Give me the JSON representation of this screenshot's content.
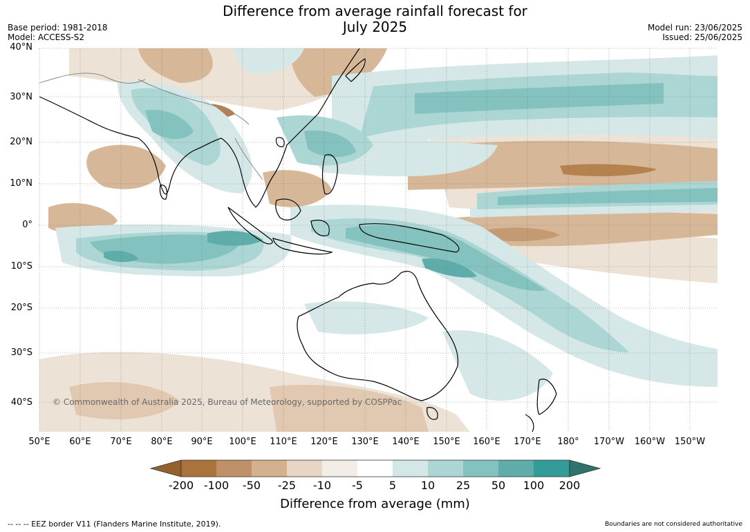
{
  "title_line1": "Difference from average rainfall forecast for",
  "title_line2": "July 2025",
  "base_period": "Base period: 1981-2018",
  "model": "Model: ACCESS-S2",
  "model_run": "Model run: 23/06/2025",
  "issued": "Issued: 25/06/2025",
  "lat_labels": [
    "40°N",
    "30°N",
    "20°N",
    "10°N",
    "0°",
    "10°S",
    "20°S",
    "30°S",
    "40°S"
  ],
  "lon_labels": [
    "50°E",
    "60°E",
    "70°E",
    "80°E",
    "90°E",
    "100°E",
    "110°E",
    "120°E",
    "130°E",
    "140°E",
    "150°E",
    "160°E",
    "170°E",
    "180°",
    "170°W",
    "160°W",
    "150°W"
  ],
  "copyright": "© Commonwealth of Australia 2025, Bureau of Meteorology, supported by COSPPac",
  "colorbar": {
    "ticks": [
      "-200",
      "-100",
      "-50",
      "-25",
      "-10",
      "-5",
      "5",
      "10",
      "25",
      "50",
      "100",
      "200"
    ],
    "colors": [
      "#94612e",
      "#aa733b",
      "#c09168",
      "#d3b08e",
      "#e7d6c4",
      "#f2ede7",
      "#ffffff",
      "#d3e7e6",
      "#acd6d4",
      "#84c2c0",
      "#5eadab",
      "#339c98",
      "#30736e"
    ],
    "label": "Difference from average (mm)"
  },
  "footer_left": "--  --  -- EEZ border V11 (Flanders Marine Institute, 2019).",
  "footer_right": "Boundaries are not considered authoritative"
}
